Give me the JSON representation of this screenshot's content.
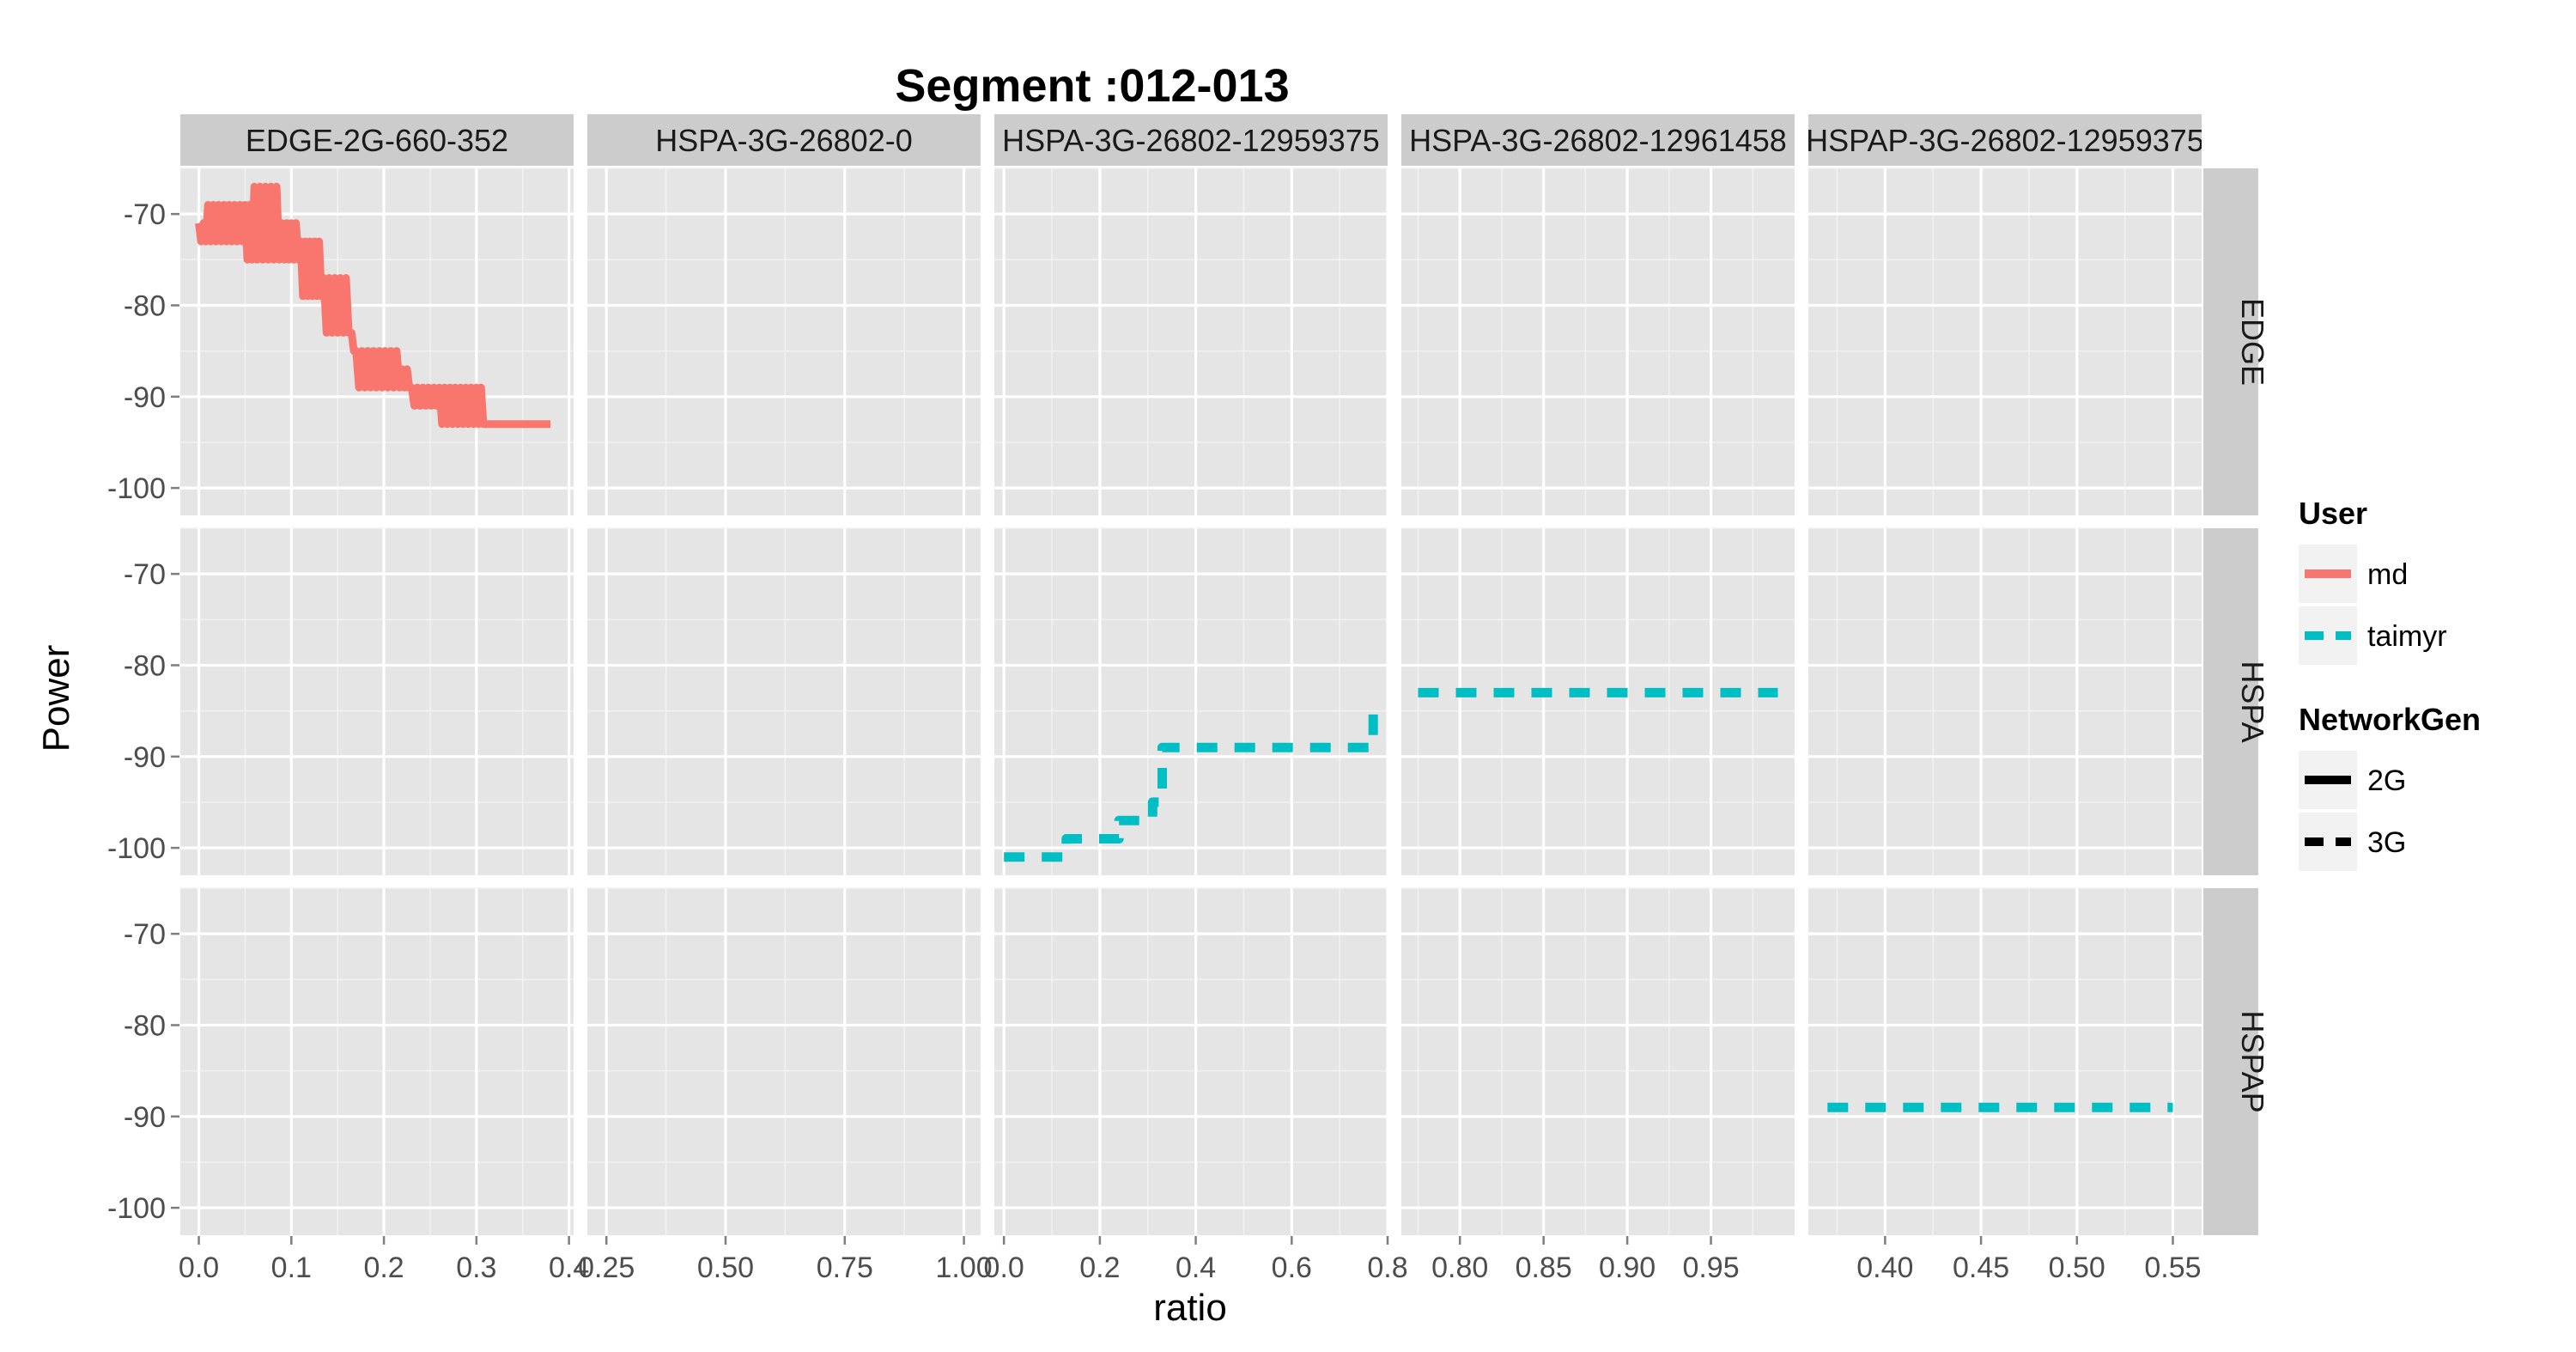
{
  "chart_data": {
    "type": "line",
    "title": "Segment :012-013",
    "xlabel": "ratio",
    "ylabel": "Power",
    "ylim": [
      -103,
      -65
    ],
    "y_ticks": [
      -70,
      -80,
      -90,
      -100
    ],
    "y_tick_labels": [
      "-70",
      "-80",
      "-90",
      "-100"
    ],
    "columns": [
      {
        "label": "EDGE-2G-660-352",
        "xlim": [
          -0.02,
          0.405
        ],
        "ticks": [
          0.0,
          0.1,
          0.2,
          0.3,
          0.4
        ],
        "tick_labels": [
          "0.0",
          "0.1",
          "0.2",
          "0.3",
          "0.4"
        ]
      },
      {
        "label": "HSPA-3G-26802-0",
        "xlim": [
          0.21,
          1.035
        ],
        "ticks": [
          0.25,
          0.5,
          0.75,
          1.0
        ],
        "tick_labels": [
          "0.25",
          "0.50",
          "0.75",
          "1.00"
        ]
      },
      {
        "label": "HSPA-3G-26802-12959375",
        "xlim": [
          -0.02,
          0.8
        ],
        "ticks": [
          0.0,
          0.2,
          0.4,
          0.6,
          0.8
        ],
        "tick_labels": [
          "0.0",
          "0.2",
          "0.4",
          "0.6",
          "0.8"
        ]
      },
      {
        "label": "HSPA-3G-26802-12961458",
        "xlim": [
          0.765,
          1.0
        ],
        "ticks": [
          0.8,
          0.85,
          0.9,
          0.95
        ],
        "tick_labels": [
          "0.80",
          "0.85",
          "0.90",
          "0.95"
        ]
      },
      {
        "label": "HSPAP-3G-26802-12959375",
        "xlim": [
          0.36,
          0.565
        ],
        "ticks": [
          0.4,
          0.45,
          0.5,
          0.55
        ],
        "tick_labels": [
          "0.40",
          "0.45",
          "0.50",
          "0.55"
        ]
      }
    ],
    "rows": [
      "EDGE",
      "HSPA",
      "HSPAP"
    ],
    "legend": {
      "position": "right",
      "groups": [
        {
          "title": "User",
          "items": [
            {
              "label": "md",
              "color": "#F8766D",
              "dash": "solid"
            },
            {
              "label": "taimyr",
              "color": "#00BFC4",
              "dash": "dashed"
            }
          ]
        },
        {
          "title": "NetworkGen",
          "items": [
            {
              "label": "2G",
              "color": "#000000",
              "dash": "solid"
            },
            {
              "label": "3G",
              "color": "#000000",
              "dash": "dashed"
            }
          ]
        }
      ]
    },
    "series": [
      {
        "user": "md",
        "network_gen": "2G",
        "row": 0,
        "col": 0,
        "color": "#F8766D",
        "dash": "solid",
        "oscillating": true,
        "points": [
          [
            0.0,
            -71,
            -73
          ],
          [
            0.01,
            -69,
            -73
          ],
          [
            0.05,
            -69,
            -75
          ],
          [
            0.06,
            -67,
            -75
          ],
          [
            0.09,
            -71,
            -75
          ],
          [
            0.1,
            -71,
            -75
          ],
          [
            0.11,
            -73,
            -79
          ],
          [
            0.125,
            -73,
            -79
          ],
          [
            0.135,
            -77,
            -83
          ],
          [
            0.165,
            -83,
            -85
          ],
          [
            0.17,
            -85,
            -89
          ],
          [
            0.22,
            -87,
            -89
          ],
          [
            0.23,
            -89,
            -91
          ],
          [
            0.26,
            -89,
            -93
          ],
          [
            0.3,
            -89,
            -93
          ],
          [
            0.31,
            -93,
            -93
          ],
          [
            0.38,
            -93,
            -93
          ]
        ]
      },
      {
        "user": "taimyr",
        "network_gen": "3G",
        "row": 1,
        "col": 2,
        "color": "#00BFC4",
        "dash": "dashed",
        "points": [
          [
            0.0,
            -101
          ],
          [
            0.12,
            -101
          ],
          [
            0.13,
            -99
          ],
          [
            0.2,
            -99
          ],
          [
            0.24,
            -97
          ],
          [
            0.27,
            -97
          ],
          [
            0.31,
            -95
          ],
          [
            0.33,
            -89
          ],
          [
            0.74,
            -89
          ],
          [
            0.77,
            -85
          ]
        ]
      },
      {
        "user": "taimyr",
        "network_gen": "3G",
        "row": 1,
        "col": 3,
        "color": "#00BFC4",
        "dash": "dashed",
        "points": [
          [
            0.775,
            -83
          ],
          [
            0.99,
            -83
          ]
        ]
      },
      {
        "user": "taimyr",
        "network_gen": "3G",
        "row": 2,
        "col": 4,
        "color": "#00BFC4",
        "dash": "dashed",
        "points": [
          [
            0.37,
            -89
          ],
          [
            0.55,
            -89
          ]
        ]
      }
    ]
  }
}
